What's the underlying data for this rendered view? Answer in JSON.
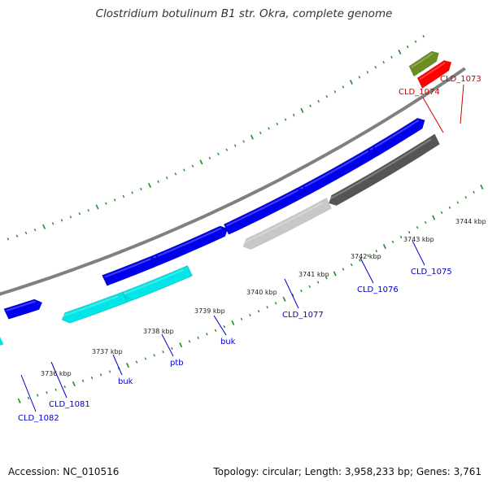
{
  "title": "Clostridium botulinum B1 str. Okra, complete genome",
  "accession": "Accession: NC_010516",
  "topology": "Topology: circular; Length: 3,958,233 bp; Genes: 3,761",
  "colors": {
    "backbone": "#808080",
    "tick": "#228B22",
    "label_blue": "#0000CC",
    "label_red": "#CC0000",
    "blue": "#0000EE",
    "cyan": "#00E5E5",
    "light_gray": "#C8C8C8",
    "dark_gray": "#555555",
    "olive": "#6B8E23",
    "red": "#FF0000"
  },
  "ticks": {
    "unit": "kbp",
    "labels": [
      "3736 kbp",
      "3737 kbp",
      "3738 kbp",
      "3739 kbp",
      "3740 kbp",
      "3741 kbp",
      "3742 kbp",
      "3743 kbp",
      "3744 kbp"
    ]
  },
  "genes": [
    {
      "label": "CLD_1082",
      "color": "blue",
      "label_color": "blue",
      "strand": "+"
    },
    {
      "label": "CLD_1081",
      "color": "cyan",
      "label_color": "blue",
      "strand": "-"
    },
    {
      "label": "buk",
      "color": "blue",
      "label_color": "blue",
      "strand": "+"
    },
    {
      "label": "ptb",
      "color": "cyan",
      "label_color": "blue",
      "strand": "-"
    },
    {
      "label": "buk",
      "color": "blue",
      "label_color": "blue",
      "strand": "+"
    },
    {
      "label": "CLD_1077",
      "color": "light_gray",
      "label_color": "blue",
      "strand": "-"
    },
    {
      "label": "CLD_1076",
      "color": "dark_gray",
      "label_color": "blue",
      "strand": "-"
    },
    {
      "label": "CLD_1075",
      "color": "blue",
      "label_color": "blue",
      "strand": "+"
    },
    {
      "label": "CLD_1074",
      "color": "olive",
      "label_color": "red",
      "strand": "+"
    },
    {
      "label": "CLD_1073",
      "color": "red",
      "label_color": "red",
      "strand": "+"
    }
  ]
}
